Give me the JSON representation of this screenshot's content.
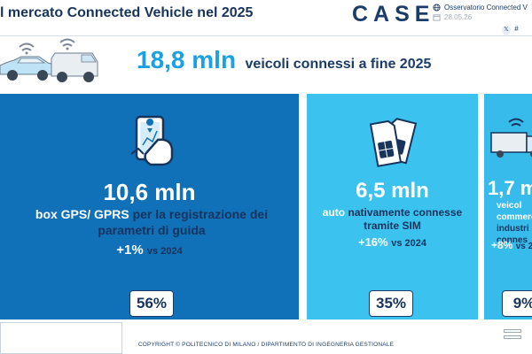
{
  "header": {
    "title": "l mercato Connected Vehicle nel 2025",
    "logo": "CASE",
    "observatory": "Osservatorio Connected  V",
    "date": "28.05.26",
    "social_handle": "#"
  },
  "hero": {
    "value": "18,8 mln",
    "label": "veicoli connessi a fine 2025"
  },
  "panels": [
    {
      "value": "10,6 mln",
      "desc_highlight": "box GPS/ GPRS",
      "desc_rest": "per la registrazione dei parametri di guida",
      "growth": "+1%",
      "vs": "vs 2024",
      "share": "56%",
      "icon": "phone-map-icon"
    },
    {
      "value": "6,5 mln",
      "desc_highlight": "auto",
      "desc_rest": "nativamente connesse tramite SIM",
      "growth": "+16%",
      "vs": "vs 2024",
      "share": "35%",
      "icon": "sim-card-icon"
    },
    {
      "value": "1,7 m",
      "desc_line1": "veicol",
      "desc_line2": "commerci",
      "desc_line3": "industri",
      "desc_line4": "connes",
      "growth": "+8%",
      "vs": "vs 2",
      "share": "9%",
      "icon": "truck-icon"
    }
  ],
  "footer": {
    "copyright": "COPYRIGHT © POLITECNICO DI MILANO / DIPARTIMENTO DI INGEGNERIA GESTIONALE"
  },
  "colors": {
    "dark_blue": "#1071b9",
    "light_blue": "#3cc2ef",
    "accent": "#1aa0e6",
    "navy": "#16345c"
  }
}
